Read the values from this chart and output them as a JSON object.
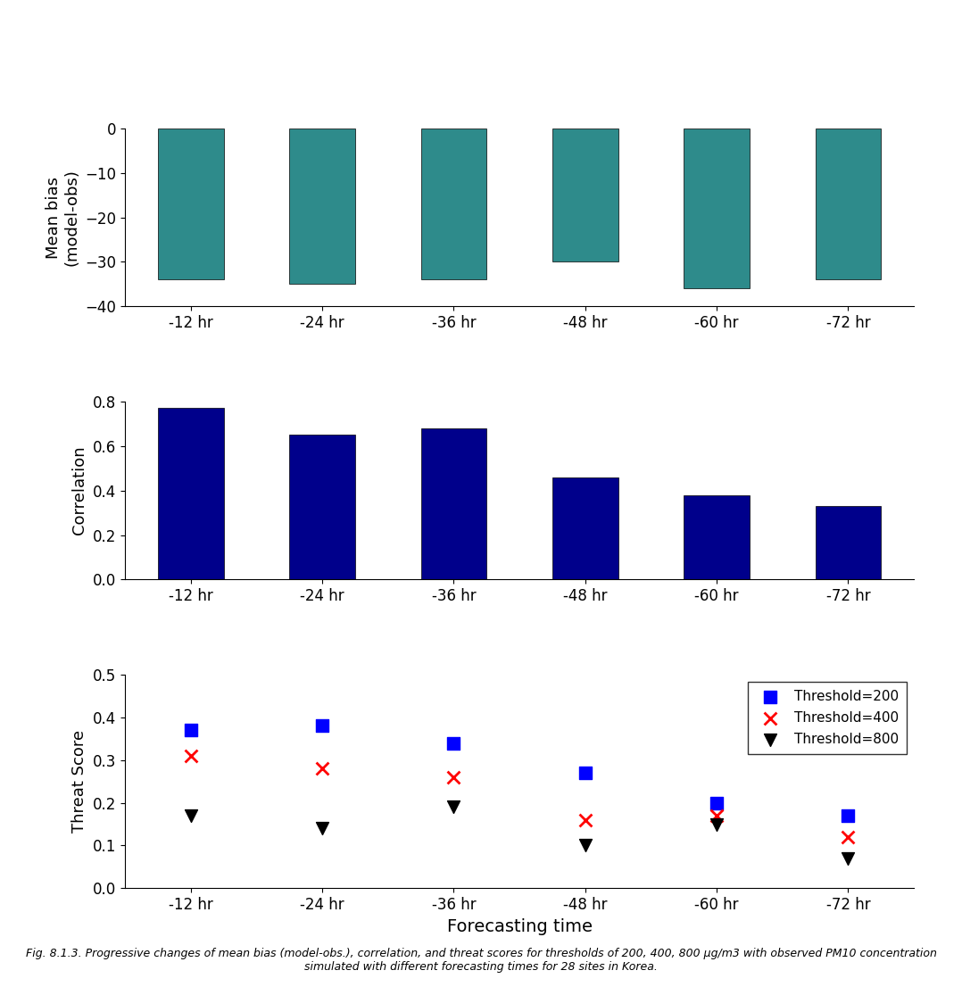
{
  "categories": [
    "-12 hr",
    "-24 hr",
    "-36 hr",
    "-48 hr",
    "-60 hr",
    "-72 hr"
  ],
  "mean_bias": [
    -34.0,
    -35.0,
    -34.0,
    -30.0,
    -36.0,
    -34.0
  ],
  "correlation": [
    0.77,
    0.65,
    0.68,
    0.46,
    0.38,
    0.33
  ],
  "threat_200": [
    0.37,
    0.38,
    0.34,
    0.27,
    0.2,
    0.17
  ],
  "threat_400": [
    0.31,
    0.28,
    0.26,
    0.16,
    0.17,
    0.12
  ],
  "threat_800": [
    0.17,
    0.14,
    0.19,
    0.1,
    0.15,
    0.07
  ],
  "bar_color_bias": "#2e8b8b",
  "bar_color_corr": "#00008B",
  "ylabel_bias": "Mean bias\n(model-obs)",
  "ylabel_corr": "Correlation",
  "ylabel_threat": "Threat Score",
  "xlabel": "Forecasting time",
  "ylim_bias": [
    -40,
    0
  ],
  "ylim_corr": [
    0.0,
    0.8
  ],
  "ylim_threat": [
    0.0,
    0.5
  ],
  "yticks_bias": [
    -40,
    -30,
    -20,
    -10,
    0
  ],
  "yticks_corr": [
    0.0,
    0.2,
    0.4,
    0.6,
    0.8
  ],
  "yticks_threat": [
    0.0,
    0.1,
    0.2,
    0.3,
    0.4,
    0.5
  ],
  "legend_labels": [
    "Threshold=200",
    "Threshold=400",
    "Threshold=800"
  ],
  "marker_200_color": "blue",
  "marker_400_color": "red",
  "marker_800_color": "black",
  "caption": "Fig. 8.1.3. Progressive changes of mean bias (model-obs.), correlation, and threat scores for thresholds of 200, 400, 800 μg/m3 with observed PM10 concentration simulated with different forecasting times for 28 sites in Korea.",
  "fontsize_tick": 12,
  "fontsize_label": 13,
  "fontsize_legend": 11,
  "fontsize_caption": 9,
  "bar_width": 0.5
}
